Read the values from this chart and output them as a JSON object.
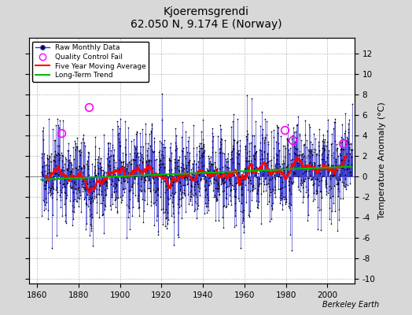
{
  "title": "Kjoeremsgrendi",
  "subtitle": "62.050 N, 9.174 E (Norway)",
  "ylabel": "Temperature Anomaly (°C)",
  "xlabel_years": [
    1860,
    1880,
    1900,
    1920,
    1940,
    1960,
    1980,
    2000
  ],
  "ylim": [
    -10.5,
    13.5
  ],
  "xlim": [
    1856,
    2013
  ],
  "yticks": [
    -10,
    -8,
    -6,
    -4,
    -2,
    0,
    2,
    4,
    6,
    8,
    10,
    12
  ],
  "background_color": "#d8d8d8",
  "plot_bg_color": "#ffffff",
  "raw_line_color": "#3333cc",
  "raw_dot_color": "#000000",
  "moving_avg_color": "#ff0000",
  "trend_color": "#00bb00",
  "qc_fail_color": "#ff00ff",
  "watermark": "Berkeley Earth",
  "seed": 17,
  "start_year": 1862,
  "end_year": 2012,
  "qc_fail_points": [
    [
      1871.5,
      4.2
    ],
    [
      1885.0,
      6.7
    ],
    [
      1979.5,
      4.5
    ],
    [
      1983.2,
      3.5
    ],
    [
      2007.5,
      3.2
    ]
  ],
  "noise_std": 2.2,
  "ma_window_months": 60
}
